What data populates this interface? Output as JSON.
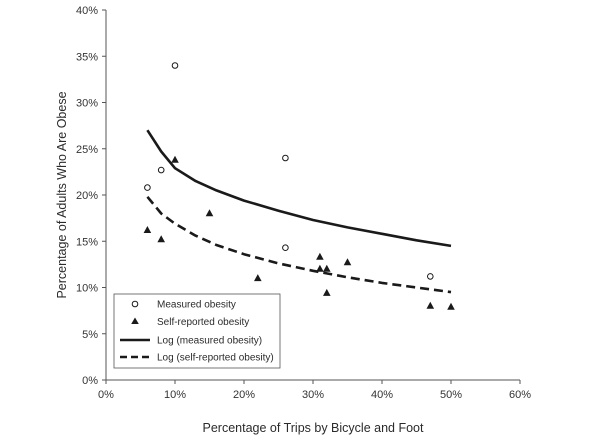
{
  "chart_data": {
    "type": "scatter",
    "title": "",
    "xlabel": "Percentage of Trips by Bicycle and Foot",
    "ylabel": "Percentage of Adults Who Are Obese",
    "xlim": [
      0,
      60
    ],
    "ylim": [
      0,
      40
    ],
    "x_ticks": [
      0,
      10,
      20,
      30,
      40,
      50,
      60
    ],
    "x_tick_labels": [
      "0%",
      "10%",
      "20%",
      "30%",
      "40%",
      "50%",
      "60%"
    ],
    "y_ticks": [
      0,
      5,
      10,
      15,
      20,
      25,
      30,
      35,
      40
    ],
    "y_tick_labels": [
      "0%",
      "5%",
      "10%",
      "15%",
      "20%",
      "25%",
      "30%",
      "35%",
      "40%"
    ],
    "grid": false,
    "legend_position": "bottom-left",
    "series": [
      {
        "name": "Measured obesity",
        "marker": "open-circle",
        "points": [
          [
            6,
            20.8
          ],
          [
            8,
            22.7
          ],
          [
            10,
            34.0
          ],
          [
            26,
            24.0
          ],
          [
            26,
            14.3
          ],
          [
            47,
            11.2
          ]
        ]
      },
      {
        "name": "Self-reported obesity",
        "marker": "filled-triangle",
        "points": [
          [
            6,
            16.2
          ],
          [
            8,
            15.2
          ],
          [
            10,
            23.8
          ],
          [
            15,
            18.0
          ],
          [
            22,
            11.0
          ],
          [
            31,
            13.3
          ],
          [
            31,
            12.0
          ],
          [
            32,
            12.0
          ],
          [
            32,
            9.4
          ],
          [
            35,
            12.7
          ],
          [
            47,
            8.0
          ],
          [
            50,
            7.9
          ]
        ]
      },
      {
        "name": "Log (measured obesity)",
        "line_style": "solid",
        "x": [
          6,
          8,
          10,
          13,
          16,
          20,
          25,
          30,
          35,
          40,
          45,
          50
        ],
        "y": [
          27.0,
          24.7,
          22.9,
          21.5,
          20.5,
          19.4,
          18.3,
          17.3,
          16.5,
          15.8,
          15.1,
          14.5
        ]
      },
      {
        "name": "Log (self-reported obesity)",
        "line_style": "dashed",
        "x": [
          6,
          8,
          10,
          13,
          16,
          20,
          25,
          30,
          35,
          40,
          45,
          50
        ],
        "y": [
          19.8,
          18.0,
          16.9,
          15.6,
          14.6,
          13.6,
          12.6,
          11.8,
          11.1,
          10.5,
          10.0,
          9.5
        ]
      }
    ],
    "colors": {
      "ink": "#1a1a1a",
      "axis": "#555555"
    }
  }
}
